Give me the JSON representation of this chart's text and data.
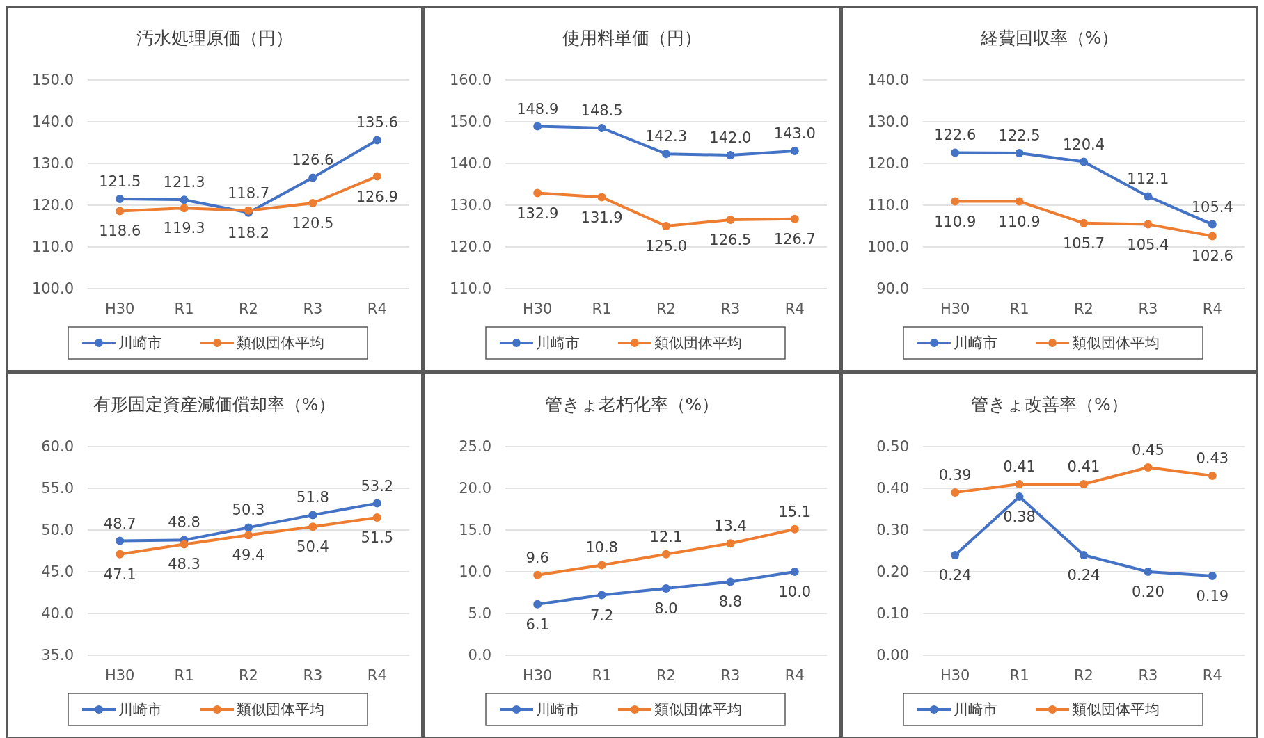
{
  "chart_data": [
    {
      "type": "line",
      "title": "汚水処理原価（円）",
      "categories": [
        "H30",
        "R1",
        "R2",
        "R3",
        "R4"
      ],
      "series": [
        {
          "name": "川崎市",
          "color": "#4472c4",
          "values": [
            121.5,
            121.3,
            118.2,
            126.6,
            135.6
          ],
          "value_labels": [
            "121.5",
            "121.3",
            "118.2",
            "126.6",
            "135.6"
          ]
        },
        {
          "name": "類似団体平均",
          "color": "#ed7d31",
          "values": [
            118.6,
            119.3,
            118.7,
            120.5,
            126.9
          ],
          "value_labels": [
            "118.6",
            "119.3",
            "118.7",
            "120.5",
            "126.9"
          ]
        }
      ],
      "ylim": [
        100,
        150
      ],
      "yticks": [
        {
          "value": 100,
          "label": "100.0"
        },
        {
          "value": 110,
          "label": "110.0"
        },
        {
          "value": 120,
          "label": "120.0"
        },
        {
          "value": 130,
          "label": "130.0"
        },
        {
          "value": 140,
          "label": "140.0"
        },
        {
          "value": 150,
          "label": "150.0"
        }
      ],
      "grid": "y",
      "legend": "bottom",
      "marker": "circle"
    },
    {
      "type": "line",
      "title": "使用料単価（円）",
      "categories": [
        "H30",
        "R1",
        "R2",
        "R3",
        "R4"
      ],
      "series": [
        {
          "name": "川崎市",
          "color": "#4472c4",
          "values": [
            148.9,
            148.5,
            142.3,
            142.0,
            143.0
          ],
          "value_labels": [
            "148.9",
            "148.5",
            "142.3",
            "142.0",
            "143.0"
          ]
        },
        {
          "name": "類似団体平均",
          "color": "#ed7d31",
          "values": [
            132.9,
            131.9,
            125.0,
            126.5,
            126.7
          ],
          "value_labels": [
            "132.9",
            "131.9",
            "125.0",
            "126.5",
            "126.7"
          ]
        }
      ],
      "ylim": [
        110,
        160
      ],
      "yticks": [
        {
          "value": 110,
          "label": "110.0"
        },
        {
          "value": 120,
          "label": "120.0"
        },
        {
          "value": 130,
          "label": "130.0"
        },
        {
          "value": 140,
          "label": "140.0"
        },
        {
          "value": 150,
          "label": "150.0"
        },
        {
          "value": 160,
          "label": "160.0"
        }
      ],
      "grid": "y",
      "legend": "bottom",
      "marker": "circle"
    },
    {
      "type": "line",
      "title": "経費回収率（%）",
      "categories": [
        "H30",
        "R1",
        "R2",
        "R3",
        "R4"
      ],
      "series": [
        {
          "name": "川崎市",
          "color": "#4472c4",
          "values": [
            122.6,
            122.5,
            120.4,
            112.1,
            105.4
          ],
          "value_labels": [
            "122.6",
            "122.5",
            "120.4",
            "112.1",
            "105.4"
          ]
        },
        {
          "name": "類似団体平均",
          "color": "#ed7d31",
          "values": [
            110.9,
            110.9,
            105.7,
            105.4,
            102.6
          ],
          "value_labels": [
            "110.9",
            "110.9",
            "105.7",
            "105.4",
            "102.6"
          ]
        }
      ],
      "ylim": [
        90,
        140
      ],
      "yticks": [
        {
          "value": 90,
          "label": "90.0"
        },
        {
          "value": 100,
          "label": "100.0"
        },
        {
          "value": 110,
          "label": "110.0"
        },
        {
          "value": 120,
          "label": "120.0"
        },
        {
          "value": 130,
          "label": "130.0"
        },
        {
          "value": 140,
          "label": "140.0"
        }
      ],
      "grid": "y",
      "legend": "bottom",
      "marker": "circle"
    },
    {
      "type": "line",
      "title": "有形固定資産減価償却率（%）",
      "categories": [
        "H30",
        "R1",
        "R2",
        "R3",
        "R4"
      ],
      "series": [
        {
          "name": "川崎市",
          "color": "#4472c4",
          "values": [
            48.7,
            48.8,
            50.3,
            51.8,
            53.2
          ],
          "value_labels": [
            "48.7",
            "48.8",
            "50.3",
            "51.8",
            "53.2"
          ]
        },
        {
          "name": "類似団体平均",
          "color": "#ed7d31",
          "values": [
            47.1,
            48.3,
            49.4,
            50.4,
            51.5
          ],
          "value_labels": [
            "47.1",
            "48.3",
            "49.4",
            "50.4",
            "51.5"
          ]
        }
      ],
      "ylim": [
        35,
        60
      ],
      "yticks": [
        {
          "value": 35,
          "label": "35.0"
        },
        {
          "value": 40,
          "label": "40.0"
        },
        {
          "value": 45,
          "label": "45.0"
        },
        {
          "value": 50,
          "label": "50.0"
        },
        {
          "value": 55,
          "label": "55.0"
        },
        {
          "value": 60,
          "label": "60.0"
        }
      ],
      "grid": "y",
      "legend": "bottom",
      "marker": "circle"
    },
    {
      "type": "line",
      "title": "管きょ老朽化率（%）",
      "categories": [
        "H30",
        "R1",
        "R2",
        "R3",
        "R4"
      ],
      "series": [
        {
          "name": "川崎市",
          "color": "#4472c4",
          "values": [
            6.1,
            7.2,
            8.0,
            8.8,
            10.0
          ],
          "value_labels": [
            "6.1",
            "7.2",
            "8.0",
            "8.8",
            "10.0"
          ]
        },
        {
          "name": "類似団体平均",
          "color": "#ed7d31",
          "values": [
            9.6,
            10.8,
            12.1,
            13.4,
            15.1
          ],
          "value_labels": [
            "9.6",
            "10.8",
            "12.1",
            "13.4",
            "15.1"
          ]
        }
      ],
      "ylim": [
        0,
        25
      ],
      "yticks": [
        {
          "value": 0,
          "label": "0.0"
        },
        {
          "value": 5,
          "label": "5.0"
        },
        {
          "value": 10,
          "label": "10.0"
        },
        {
          "value": 15,
          "label": "15.0"
        },
        {
          "value": 20,
          "label": "20.0"
        },
        {
          "value": 25,
          "label": "25.0"
        }
      ],
      "grid": "y",
      "legend": "bottom",
      "marker": "circle"
    },
    {
      "type": "line",
      "title": "管きょ改善率（%）",
      "categories": [
        "H30",
        "R1",
        "R2",
        "R3",
        "R4"
      ],
      "series": [
        {
          "name": "川崎市",
          "color": "#4472c4",
          "values": [
            0.24,
            0.38,
            0.24,
            0.2,
            0.19
          ],
          "value_labels": [
            "0.24",
            "0.38",
            "0.24",
            "0.20",
            "0.19"
          ]
        },
        {
          "name": "類似団体平均",
          "color": "#ed7d31",
          "values": [
            0.39,
            0.41,
            0.41,
            0.45,
            0.43
          ],
          "value_labels": [
            "0.39",
            "0.41",
            "0.41",
            "0.45",
            "0.43"
          ]
        }
      ],
      "ylim": [
        0,
        0.5
      ],
      "yticks": [
        {
          "value": 0,
          "label": "0.00"
        },
        {
          "value": 0.1,
          "label": "0.10"
        },
        {
          "value": 0.2,
          "label": "0.20"
        },
        {
          "value": 0.3,
          "label": "0.30"
        },
        {
          "value": 0.4,
          "label": "0.40"
        },
        {
          "value": 0.5,
          "label": "0.50"
        }
      ],
      "grid": "y",
      "legend": "bottom",
      "marker": "circle"
    }
  ]
}
